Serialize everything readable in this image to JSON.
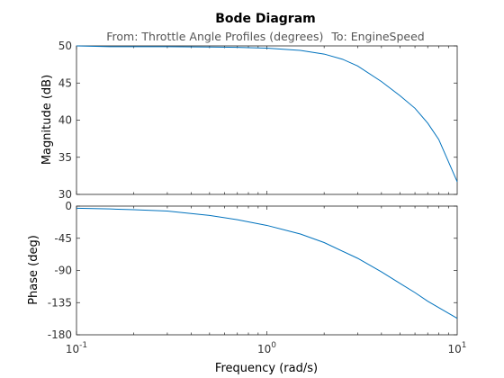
{
  "chart_data": {
    "type": "line",
    "title": "Bode Diagram",
    "subtitle_from": "From: Throttle Angle Profiles (degrees)",
    "subtitle_to": "To: EngineSpeed",
    "xlabel": "Frequency  (rad/s)",
    "xscale": "log",
    "xlim": [
      0.1,
      10
    ],
    "x_ticks": [
      {
        "base": "10",
        "exp": "-1"
      },
      {
        "base": "10",
        "exp": "0"
      },
      {
        "base": "10",
        "exp": "1"
      }
    ],
    "line_color": "#0072bd",
    "grid": false,
    "magnitude": {
      "ylabel": "Magnitude (dB)",
      "ylim": [
        30,
        50
      ],
      "yticks": [
        "50",
        "45",
        "40",
        "35",
        "30"
      ],
      "x": [
        0.1,
        0.15,
        0.2,
        0.3,
        0.5,
        0.7,
        1.0,
        1.5,
        2.0,
        2.5,
        3.0,
        4.0,
        5.0,
        6.0,
        7.0,
        8.0,
        10.0
      ],
      "values": [
        50.0,
        49.9,
        49.9,
        49.9,
        49.85,
        49.8,
        49.7,
        49.4,
        48.9,
        48.2,
        47.3,
        45.2,
        43.3,
        41.6,
        39.6,
        37.4,
        31.7
      ]
    },
    "phase": {
      "ylabel": "Phase (deg)",
      "ylim": [
        -180,
        0
      ],
      "yticks": [
        "0",
        "-45",
        "-90",
        "-135",
        "-180"
      ],
      "x": [
        0.1,
        0.15,
        0.2,
        0.3,
        0.5,
        0.7,
        1.0,
        1.5,
        2.0,
        3.0,
        4.0,
        5.0,
        6.0,
        7.0,
        8.0,
        10.0
      ],
      "values": [
        -3,
        -4,
        -5,
        -7,
        -13,
        -19,
        -27,
        -39,
        -51,
        -73,
        -92,
        -108,
        -121,
        -133,
        -142,
        -157
      ]
    }
  }
}
